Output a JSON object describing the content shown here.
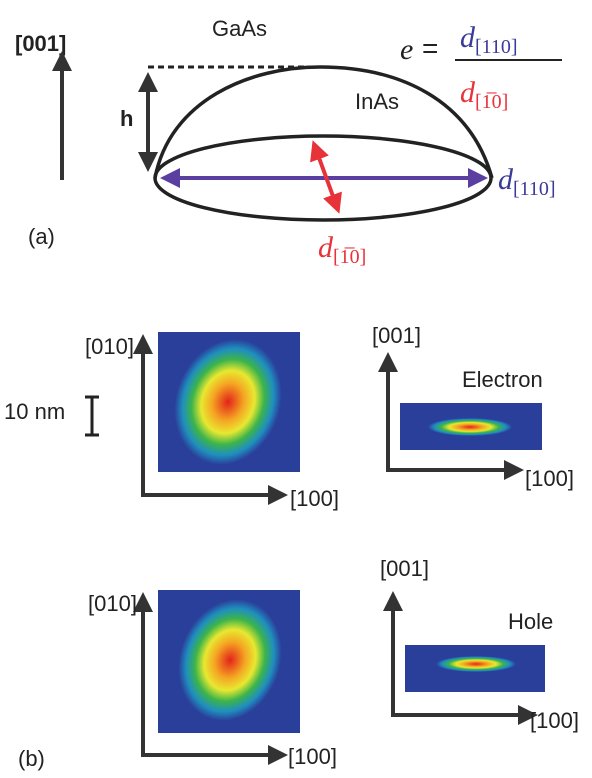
{
  "panel_a": {
    "axis_label": "[001]",
    "matrix": "GaAs",
    "height": "h",
    "dot": "InAs",
    "label": "(a)",
    "formula": {
      "lhs": "e",
      "eq": "=",
      "numerator": {
        "symbol": "d",
        "subscript": "[110]"
      },
      "denominator": {
        "symbol": "d",
        "subscript": "[1̅0]"
      }
    },
    "d_110": {
      "symbol": "d",
      "subscript": "[110]"
    },
    "d_1bar10": {
      "symbol": "d",
      "subscript": "[1̅0]"
    }
  },
  "panel_b": {
    "label": "(b)",
    "scale": "10 nm",
    "electron": {
      "name": "Electron",
      "top_y": "[010]",
      "top_x": "[100]",
      "side_y": "[001]",
      "side_x": "[100]"
    },
    "hole": {
      "name": "Hole",
      "top_y": "[010]",
      "top_x": "[100]",
      "side_y": "[001]",
      "side_x": "[100]"
    }
  }
}
